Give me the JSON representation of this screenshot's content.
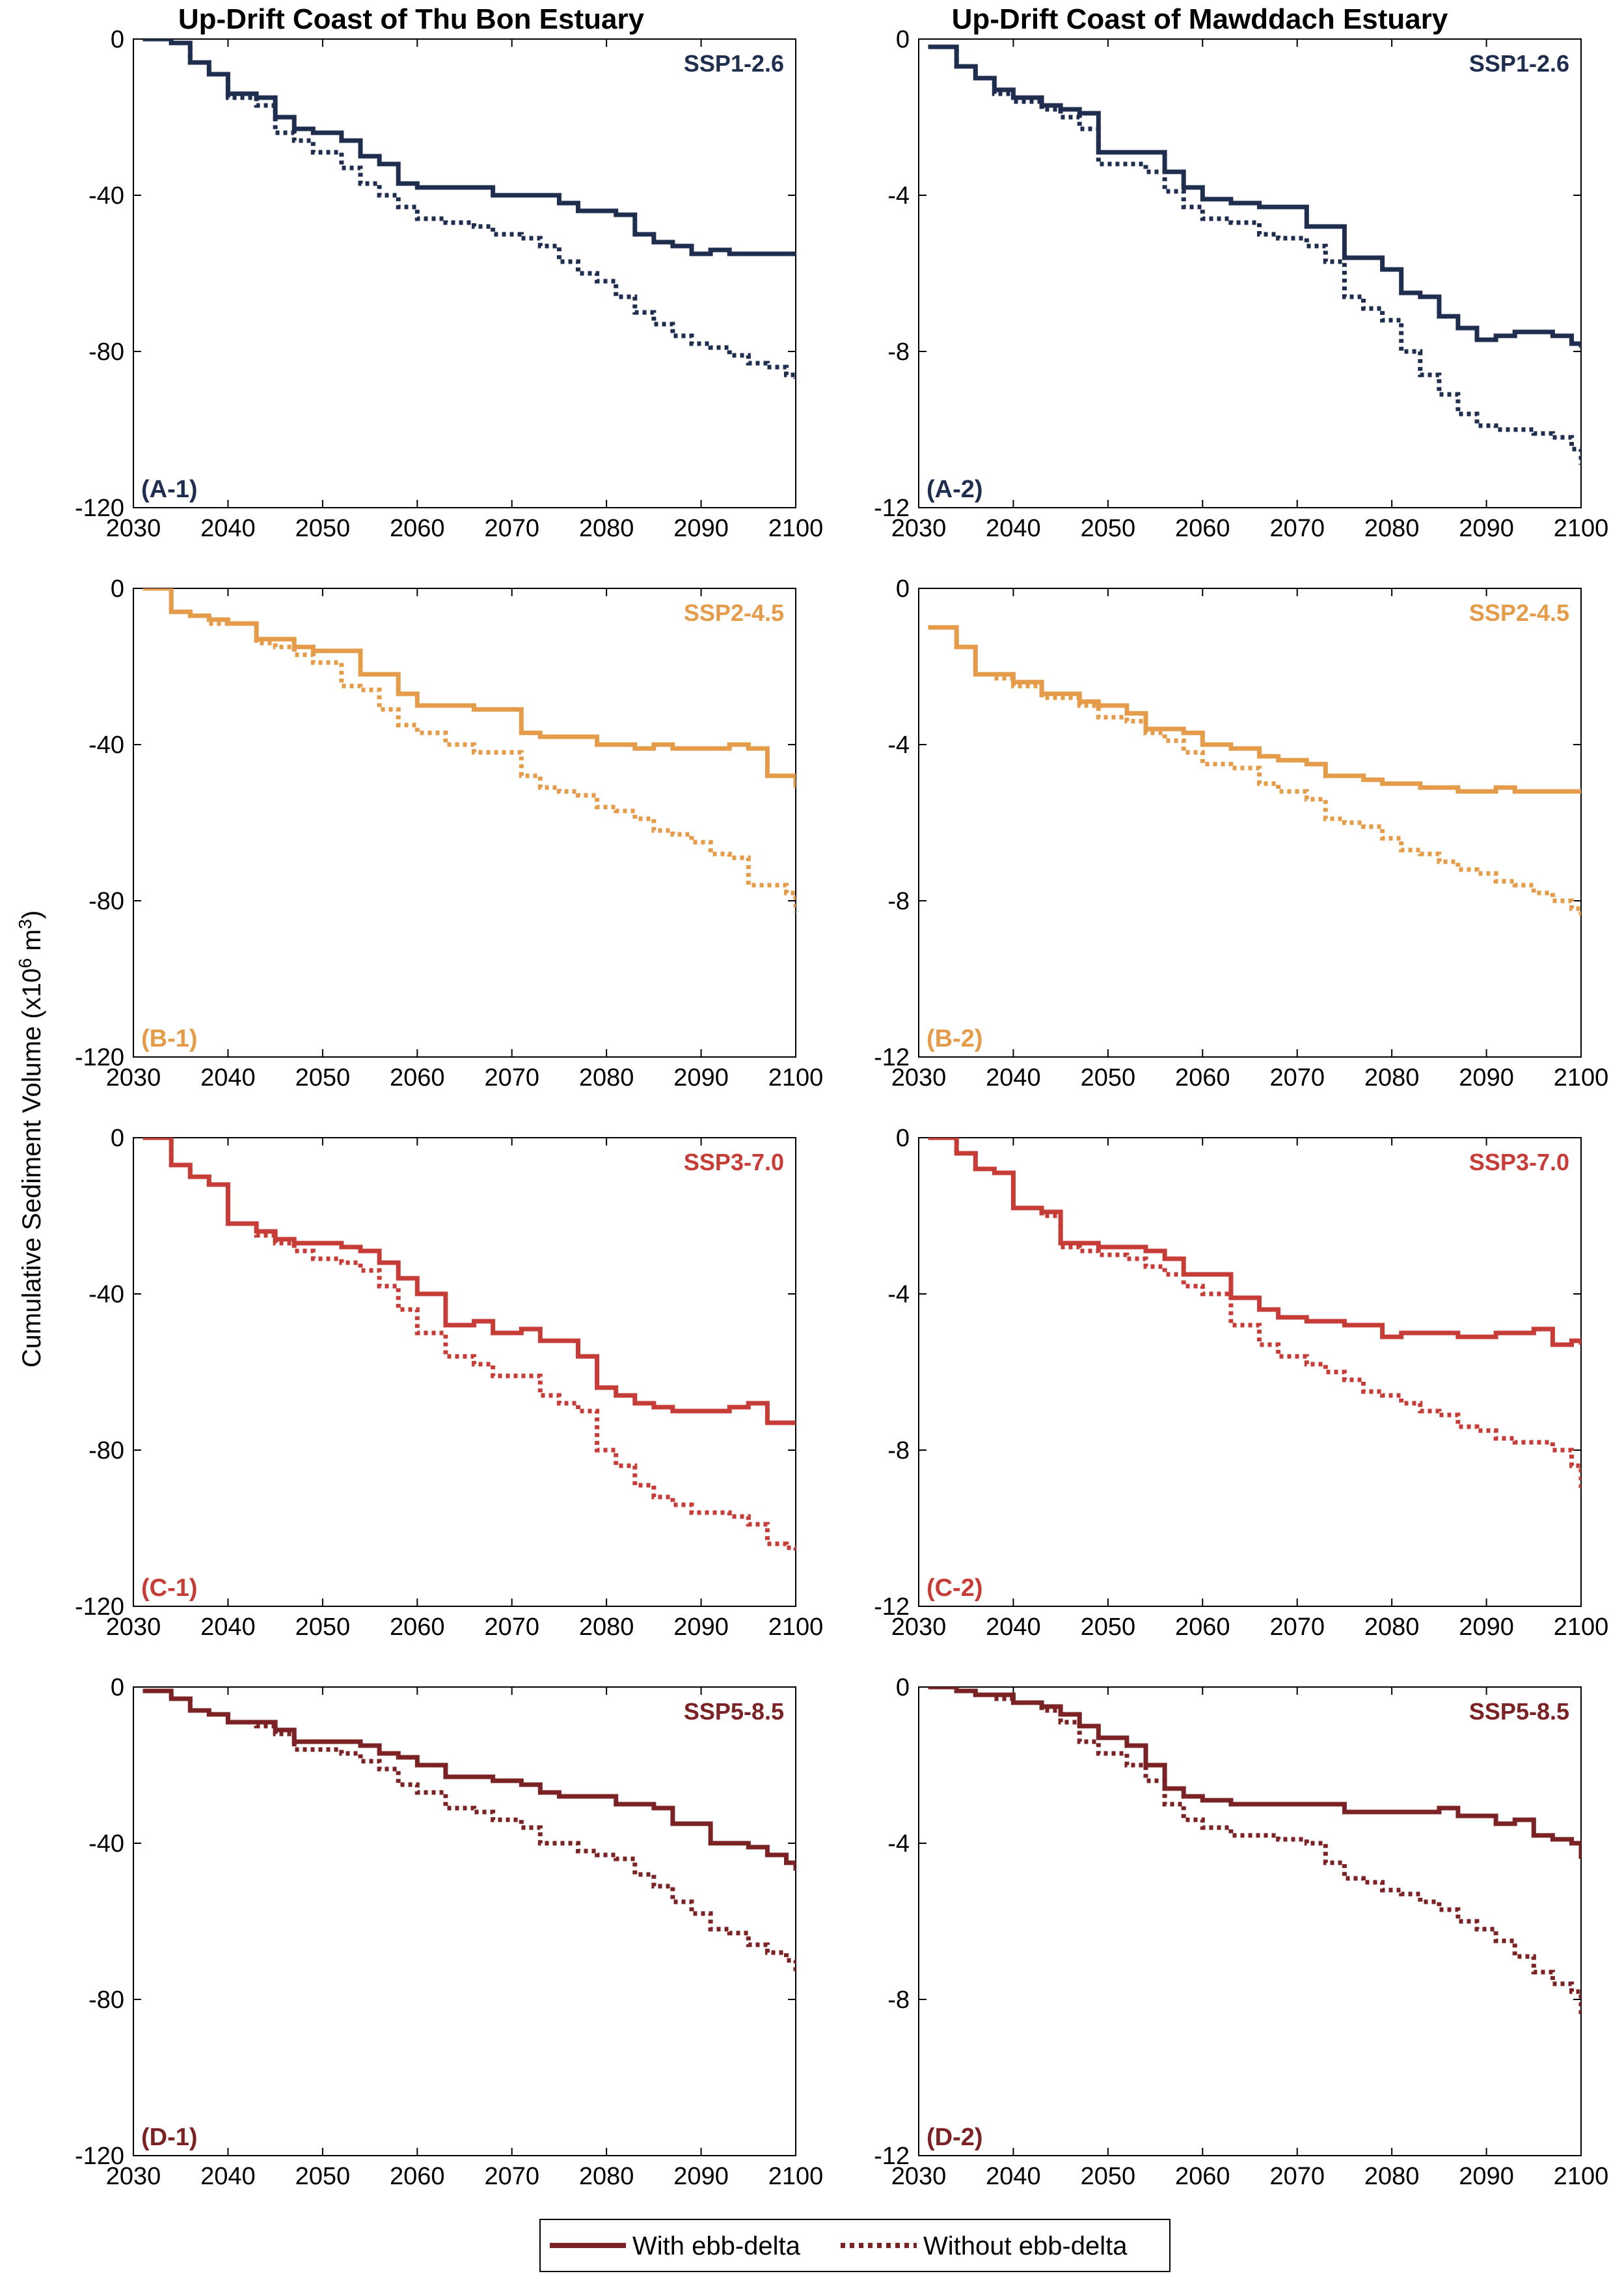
{
  "figure": {
    "column_titles": [
      "Up-Drift Coast of Thu Bon Estuary",
      "Up-Drift Coast of Mawddach Estuary"
    ],
    "ylabel_main": "Cumulative Sediment Volume (x10",
    "ylabel_sup": "6",
    "ylabel_mid": " m",
    "ylabel_sup2": "3",
    "ylabel_end": ")",
    "legend": {
      "solid_label": "With ebb-delta",
      "dotted_label": "Without ebb-delta",
      "color": "#7a2224"
    }
  },
  "chart_data": [
    {
      "type": "line",
      "panel": "(A-1)",
      "scenario": "SSP1-2.6",
      "color": "#1f2d4f",
      "xlim": [
        2030,
        2100
      ],
      "ylim": [
        -120,
        0
      ],
      "xticks": [
        "2030",
        "2040",
        "2050",
        "2060",
        "2070",
        "2080",
        "2090",
        "2100"
      ],
      "yticks": [
        "0",
        "-40",
        "-80",
        "-120"
      ],
      "x": [
        2031,
        2034,
        2036,
        2038,
        2040,
        2043,
        2045,
        2047,
        2049,
        2052,
        2054,
        2056,
        2058,
        2060,
        2063,
        2066,
        2068,
        2071,
        2073,
        2075,
        2077,
        2079,
        2081,
        2083,
        2085,
        2087,
        2089,
        2091,
        2093,
        2095,
        2097,
        2099,
        2100
      ],
      "series": [
        {
          "name": "With ebb-delta",
          "style": "solid",
          "values": [
            0,
            -1,
            -6,
            -9,
            -14,
            -15,
            -20,
            -23,
            -24,
            -26,
            -30,
            -32,
            -37,
            -38,
            -38,
            -38,
            -40,
            -40,
            -40,
            -42,
            -44,
            -44,
            -45,
            -50,
            -52,
            -53,
            -55,
            -54,
            -55,
            -55,
            -55,
            -55,
            -55
          ]
        },
        {
          "name": "Without ebb-delta",
          "style": "dotted",
          "values": [
            0,
            -1,
            -6,
            -9,
            -15,
            -17,
            -24,
            -26,
            -29,
            -33,
            -37,
            -40,
            -43,
            -46,
            -47,
            -48,
            -50,
            -51,
            -53,
            -57,
            -60,
            -62,
            -66,
            -70,
            -73,
            -76,
            -78,
            -79,
            -81,
            -83,
            -84,
            -86,
            -87
          ]
        }
      ]
    },
    {
      "type": "line",
      "panel": "(A-2)",
      "scenario": "SSP1-2.6",
      "color": "#1f2d4f",
      "xlim": [
        2030,
        2100
      ],
      "ylim": [
        -12,
        0
      ],
      "xticks": [
        "2030",
        "2040",
        "2050",
        "2060",
        "2070",
        "2080",
        "2090",
        "2100"
      ],
      "yticks": [
        "0",
        "-4",
        "-8",
        "-12"
      ],
      "x": [
        2031,
        2034,
        2036,
        2038,
        2040,
        2043,
        2045,
        2047,
        2049,
        2052,
        2054,
        2056,
        2058,
        2060,
        2063,
        2066,
        2068,
        2071,
        2073,
        2075,
        2077,
        2079,
        2081,
        2083,
        2085,
        2087,
        2089,
        2091,
        2093,
        2095,
        2097,
        2099,
        2100
      ],
      "series": [
        {
          "name": "With ebb-delta",
          "style": "solid",
          "values": [
            -0.2,
            -0.7,
            -1.0,
            -1.3,
            -1.5,
            -1.7,
            -1.8,
            -1.9,
            -2.9,
            -2.9,
            -2.9,
            -3.4,
            -3.8,
            -4.1,
            -4.2,
            -4.3,
            -4.3,
            -4.8,
            -4.8,
            -5.6,
            -5.6,
            -5.9,
            -6.5,
            -6.6,
            -7.1,
            -7.4,
            -7.7,
            -7.6,
            -7.5,
            -7.5,
            -7.6,
            -7.8,
            -7.9
          ]
        },
        {
          "name": "Without ebb-delta",
          "style": "dotted",
          "values": [
            -0.2,
            -0.7,
            -1.0,
            -1.4,
            -1.6,
            -1.8,
            -2.0,
            -2.3,
            -3.2,
            -3.2,
            -3.4,
            -3.9,
            -4.3,
            -4.6,
            -4.7,
            -5.0,
            -5.1,
            -5.3,
            -5.7,
            -6.6,
            -6.9,
            -7.2,
            -8.0,
            -8.6,
            -9.1,
            -9.6,
            -9.9,
            -10.0,
            -10.0,
            -10.1,
            -10.2,
            -10.5,
            -10.9
          ]
        }
      ]
    },
    {
      "type": "line",
      "panel": "(B-1)",
      "scenario": "SSP2-4.5",
      "color": "#e49c4b",
      "xlim": [
        2030,
        2100
      ],
      "ylim": [
        -120,
        0
      ],
      "xticks": [
        "2030",
        "2040",
        "2050",
        "2060",
        "2070",
        "2080",
        "2090",
        "2100"
      ],
      "yticks": [
        "0",
        "-40",
        "-80",
        "-120"
      ],
      "x": [
        2031,
        2034,
        2036,
        2038,
        2040,
        2043,
        2045,
        2047,
        2049,
        2052,
        2054,
        2056,
        2058,
        2060,
        2063,
        2066,
        2068,
        2071,
        2073,
        2075,
        2077,
        2079,
        2081,
        2083,
        2085,
        2087,
        2089,
        2091,
        2093,
        2095,
        2097,
        2099,
        2100
      ],
      "series": [
        {
          "name": "With ebb-delta",
          "style": "solid",
          "values": [
            0,
            -6,
            -7,
            -8,
            -9,
            -13,
            -13,
            -15,
            -16,
            -16,
            -22,
            -22,
            -27,
            -30,
            -30,
            -31,
            -31,
            -37,
            -38,
            -38,
            -38,
            -40,
            -40,
            -41,
            -40,
            -41,
            -41,
            -41,
            -40,
            -41,
            -48,
            -48,
            -51
          ]
        },
        {
          "name": "Without ebb-delta",
          "style": "dotted",
          "values": [
            0,
            -6,
            -7,
            -9,
            -9,
            -14,
            -15,
            -17,
            -19,
            -25,
            -26,
            -31,
            -35,
            -37,
            -40,
            -42,
            -42,
            -48,
            -51,
            -52,
            -53,
            -56,
            -57,
            -59,
            -62,
            -63,
            -65,
            -68,
            -69,
            -76,
            -76,
            -78,
            -83
          ]
        }
      ]
    },
    {
      "type": "line",
      "panel": "(B-2)",
      "scenario": "SSP2-4.5",
      "color": "#e49c4b",
      "xlim": [
        2030,
        2100
      ],
      "ylim": [
        -12,
        0
      ],
      "xticks": [
        "2030",
        "2040",
        "2050",
        "2060",
        "2070",
        "2080",
        "2090",
        "2100"
      ],
      "yticks": [
        "0",
        "-4",
        "-8",
        "-12"
      ],
      "x": [
        2031,
        2034,
        2036,
        2038,
        2040,
        2043,
        2045,
        2047,
        2049,
        2052,
        2054,
        2056,
        2058,
        2060,
        2063,
        2066,
        2068,
        2071,
        2073,
        2075,
        2077,
        2079,
        2081,
        2083,
        2085,
        2087,
        2089,
        2091,
        2093,
        2095,
        2097,
        2099,
        2100
      ],
      "series": [
        {
          "name": "With ebb-delta",
          "style": "solid",
          "values": [
            -1.0,
            -1.5,
            -2.2,
            -2.2,
            -2.4,
            -2.7,
            -2.7,
            -2.9,
            -3.0,
            -3.2,
            -3.6,
            -3.6,
            -3.7,
            -4.0,
            -4.1,
            -4.3,
            -4.4,
            -4.5,
            -4.8,
            -4.8,
            -4.9,
            -5.0,
            -5.0,
            -5.1,
            -5.1,
            -5.2,
            -5.2,
            -5.1,
            -5.2,
            -5.2,
            -5.2,
            -5.2,
            -5.2
          ]
        },
        {
          "name": "Without ebb-delta",
          "style": "dotted",
          "values": [
            -1.0,
            -1.5,
            -2.2,
            -2.3,
            -2.5,
            -2.8,
            -2.8,
            -3.0,
            -3.3,
            -3.4,
            -3.7,
            -3.9,
            -4.2,
            -4.5,
            -4.6,
            -5.0,
            -5.2,
            -5.4,
            -5.9,
            -6.0,
            -6.1,
            -6.4,
            -6.7,
            -6.8,
            -7.0,
            -7.2,
            -7.3,
            -7.5,
            -7.6,
            -7.8,
            -8.0,
            -8.2,
            -8.4
          ]
        }
      ]
    },
    {
      "type": "line",
      "panel": "(C-1)",
      "scenario": "SSP3-7.0",
      "color": "#c63d38",
      "xlim": [
        2030,
        2100
      ],
      "ylim": [
        -120,
        0
      ],
      "xticks": [
        "2030",
        "2040",
        "2050",
        "2060",
        "2070",
        "2080",
        "2090",
        "2100"
      ],
      "yticks": [
        "0",
        "-40",
        "-80",
        "-120"
      ],
      "x": [
        2031,
        2034,
        2036,
        2038,
        2040,
        2043,
        2045,
        2047,
        2049,
        2052,
        2054,
        2056,
        2058,
        2060,
        2063,
        2066,
        2068,
        2071,
        2073,
        2075,
        2077,
        2079,
        2081,
        2083,
        2085,
        2087,
        2089,
        2091,
        2093,
        2095,
        2097,
        2099,
        2100
      ],
      "series": [
        {
          "name": "With ebb-delta",
          "style": "solid",
          "values": [
            0,
            -7,
            -10,
            -12,
            -22,
            -24,
            -26,
            -27,
            -27,
            -28,
            -29,
            -32,
            -36,
            -40,
            -48,
            -47,
            -50,
            -49,
            -52,
            -52,
            -56,
            -64,
            -66,
            -68,
            -69,
            -70,
            -70,
            -70,
            -69,
            -68,
            -73,
            -73,
            -73
          ]
        },
        {
          "name": "Without ebb-delta",
          "style": "dotted",
          "values": [
            0,
            -7,
            -10,
            -12,
            -22,
            -25,
            -27,
            -29,
            -31,
            -32,
            -34,
            -38,
            -44,
            -50,
            -56,
            -58,
            -61,
            -61,
            -66,
            -68,
            -70,
            -80,
            -84,
            -89,
            -92,
            -94,
            -96,
            -96,
            -97,
            -99,
            -104,
            -105,
            -106
          ]
        }
      ]
    },
    {
      "type": "line",
      "panel": "(C-2)",
      "scenario": "SSP3-7.0",
      "color": "#c63d38",
      "xlim": [
        2030,
        2100
      ],
      "ylim": [
        -12,
        0
      ],
      "xticks": [
        "2030",
        "2040",
        "2050",
        "2060",
        "2070",
        "2080",
        "2090",
        "2100"
      ],
      "yticks": [
        "0",
        "-4",
        "-8",
        "-12"
      ],
      "x": [
        2031,
        2034,
        2036,
        2038,
        2040,
        2043,
        2045,
        2047,
        2049,
        2052,
        2054,
        2056,
        2058,
        2060,
        2063,
        2066,
        2068,
        2071,
        2073,
        2075,
        2077,
        2079,
        2081,
        2083,
        2085,
        2087,
        2089,
        2091,
        2093,
        2095,
        2097,
        2099,
        2100
      ],
      "series": [
        {
          "name": "With ebb-delta",
          "style": "solid",
          "values": [
            0,
            -0.4,
            -0.8,
            -0.9,
            -1.8,
            -1.9,
            -2.7,
            -2.7,
            -2.8,
            -2.8,
            -2.9,
            -3.1,
            -3.5,
            -3.5,
            -4.1,
            -4.4,
            -4.6,
            -4.7,
            -4.7,
            -4.8,
            -4.8,
            -5.1,
            -5.0,
            -5.0,
            -5.0,
            -5.1,
            -5.1,
            -5.0,
            -5.0,
            -4.9,
            -5.3,
            -5.2,
            -5.3
          ]
        },
        {
          "name": "Without ebb-delta",
          "style": "dotted",
          "values": [
            0,
            -0.4,
            -0.8,
            -0.9,
            -1.8,
            -2.0,
            -2.8,
            -2.9,
            -3.0,
            -3.1,
            -3.3,
            -3.5,
            -3.8,
            -4.0,
            -4.8,
            -5.3,
            -5.6,
            -5.8,
            -6.0,
            -6.2,
            -6.5,
            -6.6,
            -6.8,
            -7.0,
            -7.1,
            -7.4,
            -7.5,
            -7.7,
            -7.8,
            -7.8,
            -8.0,
            -8.4,
            -9.0
          ]
        }
      ]
    },
    {
      "type": "line",
      "panel": "(D-1)",
      "scenario": "SSP5-8.5",
      "color": "#7a2224",
      "xlim": [
        2030,
        2100
      ],
      "ylim": [
        -120,
        0
      ],
      "xticks": [
        "2030",
        "2040",
        "2050",
        "2060",
        "2070",
        "2080",
        "2090",
        "2100"
      ],
      "yticks": [
        "0",
        "-40",
        "-80",
        "-120"
      ],
      "x": [
        2031,
        2034,
        2036,
        2038,
        2040,
        2043,
        2045,
        2047,
        2049,
        2052,
        2054,
        2056,
        2058,
        2060,
        2063,
        2066,
        2068,
        2071,
        2073,
        2075,
        2077,
        2079,
        2081,
        2083,
        2085,
        2087,
        2089,
        2091,
        2093,
        2095,
        2097,
        2099,
        2100
      ],
      "series": [
        {
          "name": "With ebb-delta",
          "style": "solid",
          "values": [
            -1,
            -3,
            -6,
            -7,
            -9,
            -9,
            -11,
            -14,
            -14,
            -14,
            -15,
            -17,
            -18,
            -20,
            -23,
            -23,
            -24,
            -25,
            -27,
            -28,
            -28,
            -28,
            -30,
            -30,
            -31,
            -35,
            -35,
            -40,
            -40,
            -41,
            -43,
            -45,
            -47
          ]
        },
        {
          "name": "Without ebb-delta",
          "style": "dotted",
          "values": [
            -1,
            -3,
            -6,
            -7,
            -9,
            -10,
            -12,
            -16,
            -16,
            -17,
            -19,
            -21,
            -25,
            -27,
            -31,
            -32,
            -34,
            -36,
            -40,
            -40,
            -42,
            -43,
            -44,
            -48,
            -51,
            -55,
            -58,
            -62,
            -63,
            -66,
            -68,
            -70,
            -73
          ]
        }
      ]
    },
    {
      "type": "line",
      "panel": "(D-2)",
      "scenario": "SSP5-8.5",
      "color": "#7a2224",
      "xlim": [
        2030,
        2100
      ],
      "ylim": [
        -12,
        0
      ],
      "xticks": [
        "2030",
        "2040",
        "2050",
        "2060",
        "2070",
        "2080",
        "2090",
        "2100"
      ],
      "yticks": [
        "0",
        "-4",
        "-8",
        "-12"
      ],
      "x": [
        2031,
        2034,
        2036,
        2038,
        2040,
        2043,
        2045,
        2047,
        2049,
        2052,
        2054,
        2056,
        2058,
        2060,
        2063,
        2066,
        2068,
        2071,
        2073,
        2075,
        2077,
        2079,
        2081,
        2083,
        2085,
        2087,
        2089,
        2091,
        2093,
        2095,
        2097,
        2099,
        2100
      ],
      "series": [
        {
          "name": "With ebb-delta",
          "style": "solid",
          "values": [
            0,
            -0.1,
            -0.2,
            -0.2,
            -0.4,
            -0.5,
            -0.7,
            -1.0,
            -1.3,
            -1.5,
            -2.0,
            -2.6,
            -2.8,
            -2.9,
            -3.0,
            -3.0,
            -3.0,
            -3.0,
            -3.0,
            -3.2,
            -3.2,
            -3.2,
            -3.2,
            -3.2,
            -3.1,
            -3.3,
            -3.3,
            -3.5,
            -3.4,
            -3.8,
            -3.9,
            -4.0,
            -4.4
          ]
        },
        {
          "name": "Without ebb-delta",
          "style": "dotted",
          "values": [
            0,
            -0.1,
            -0.2,
            -0.3,
            -0.4,
            -0.6,
            -0.9,
            -1.4,
            -1.7,
            -2.0,
            -2.4,
            -3.0,
            -3.4,
            -3.6,
            -3.8,
            -3.8,
            -3.9,
            -4.0,
            -4.5,
            -4.9,
            -5.0,
            -5.2,
            -5.3,
            -5.5,
            -5.7,
            -6.0,
            -6.2,
            -6.5,
            -6.9,
            -7.3,
            -7.6,
            -7.8,
            -8.4
          ]
        }
      ]
    }
  ]
}
